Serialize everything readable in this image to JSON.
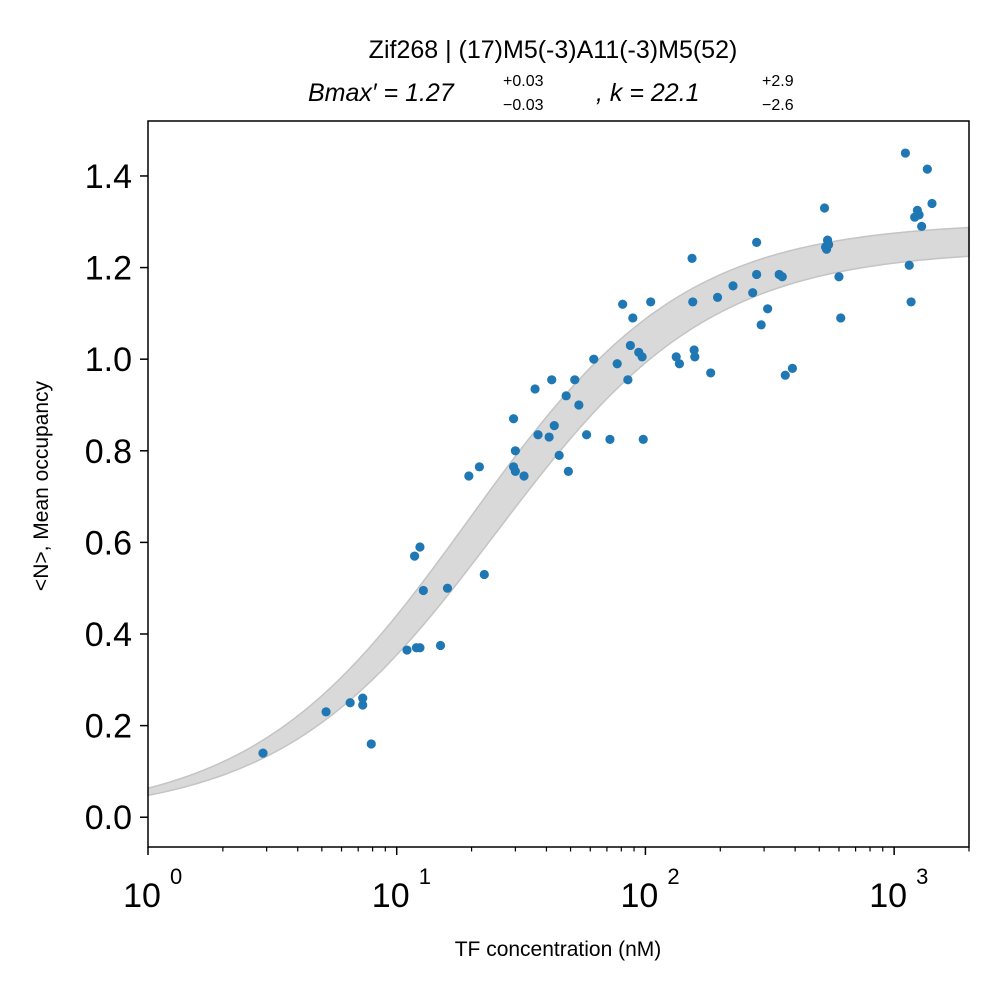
{
  "chart_data": {
    "type": "scatter",
    "title": "Zif268 | (17)M5(-3)A11(-3)M5(52)",
    "subtitle": {
      "bmax_label": "Bmax′ = 1.27",
      "bmax_sup": "+0.03",
      "bmax_sub": "−0.03",
      "k_label": ", k = 22.1",
      "k_sup": "+2.9",
      "k_sub": "−2.6"
    },
    "xlabel": "TF concentration (nM)",
    "ylabel": "<N>, Mean occupancy",
    "x_scale": "log",
    "xlim": [
      1,
      2000
    ],
    "ylim": [
      -0.065,
      1.52
    ],
    "x_ticks": [
      {
        "value": 1,
        "base": "10",
        "exp": "0"
      },
      {
        "value": 10,
        "base": "10",
        "exp": "1"
      },
      {
        "value": 100,
        "base": "10",
        "exp": "2"
      },
      {
        "value": 1000,
        "base": "10",
        "exp": "3"
      }
    ],
    "y_ticks": [
      {
        "value": 0.0,
        "label": "0.0"
      },
      {
        "value": 0.2,
        "label": "0.2"
      },
      {
        "value": 0.4,
        "label": "0.4"
      },
      {
        "value": 0.6,
        "label": "0.6"
      },
      {
        "value": 0.8,
        "label": "0.8"
      },
      {
        "value": 1.0,
        "label": "1.0"
      },
      {
        "value": 1.2,
        "label": "1.2"
      },
      {
        "value": 1.4,
        "label": "1.4"
      }
    ],
    "fit_band": {
      "model": "Bmax*x/(k+x)",
      "upper": {
        "bmax": 1.3,
        "k": 19.5
      },
      "lower": {
        "bmax": 1.24,
        "k": 25.0
      },
      "color": "#c8c8c8"
    },
    "point_color": "#1f77b4",
    "series": [
      {
        "points": [
          [
            2.9,
            0.14
          ],
          [
            5.2,
            0.23
          ],
          [
            6.5,
            0.25
          ],
          [
            7.3,
            0.26
          ],
          [
            7.3,
            0.245
          ],
          [
            7.9,
            0.16
          ],
          [
            11.0,
            0.365
          ],
          [
            12.0,
            0.37
          ],
          [
            12.4,
            0.37
          ],
          [
            11.8,
            0.57
          ],
          [
            12.4,
            0.59
          ],
          [
            12.8,
            0.495
          ],
          [
            15.0,
            0.375
          ],
          [
            16.0,
            0.5
          ],
          [
            19.5,
            0.745
          ],
          [
            21.5,
            0.765
          ],
          [
            22.5,
            0.53
          ],
          [
            29.5,
            0.87
          ],
          [
            30.0,
            0.8
          ],
          [
            29.5,
            0.765
          ],
          [
            30.0,
            0.755
          ],
          [
            32.5,
            0.745
          ],
          [
            36.0,
            0.935
          ],
          [
            37.0,
            0.835
          ],
          [
            41.0,
            0.83
          ],
          [
            42.0,
            0.955
          ],
          [
            43.0,
            0.855
          ],
          [
            45.0,
            0.79
          ],
          [
            48.0,
            0.92
          ],
          [
            49.0,
            0.755
          ],
          [
            52.0,
            0.955
          ],
          [
            54.0,
            0.9
          ],
          [
            58.0,
            0.835
          ],
          [
            62.0,
            1.0
          ],
          [
            72.0,
            0.825
          ],
          [
            77.0,
            0.99
          ],
          [
            81.0,
            1.12
          ],
          [
            85.0,
            0.955
          ],
          [
            87.0,
            1.03
          ],
          [
            89.0,
            1.09
          ],
          [
            94.0,
            1.015
          ],
          [
            97.0,
            1.005
          ],
          [
            98.0,
            0.825
          ],
          [
            105.0,
            1.125
          ],
          [
            133.0,
            1.005
          ],
          [
            137.0,
            0.99
          ],
          [
            154.0,
            1.22
          ],
          [
            155.0,
            1.125
          ],
          [
            157.0,
            1.02
          ],
          [
            158.0,
            1.005
          ],
          [
            183.0,
            0.97
          ],
          [
            195.0,
            1.135
          ],
          [
            225.0,
            1.16
          ],
          [
            270.0,
            1.145
          ],
          [
            280.0,
            1.185
          ],
          [
            280.0,
            1.255
          ],
          [
            292.0,
            1.075
          ],
          [
            310.0,
            1.11
          ],
          [
            345.0,
            1.185
          ],
          [
            355.0,
            1.18
          ],
          [
            365.0,
            0.965
          ],
          [
            390.0,
            0.98
          ],
          [
            525.0,
            1.33
          ],
          [
            530.0,
            1.245
          ],
          [
            535.0,
            1.24
          ],
          [
            540.0,
            1.26
          ],
          [
            545.0,
            1.25
          ],
          [
            600.0,
            1.18
          ],
          [
            610.0,
            1.09
          ],
          [
            1110.0,
            1.45
          ],
          [
            1150.0,
            1.205
          ],
          [
            1170.0,
            1.125
          ],
          [
            1210.0,
            1.31
          ],
          [
            1240.0,
            1.325
          ],
          [
            1260.0,
            1.315
          ],
          [
            1290.0,
            1.29
          ],
          [
            1360.0,
            1.415
          ],
          [
            1420.0,
            1.34
          ]
        ]
      }
    ]
  }
}
